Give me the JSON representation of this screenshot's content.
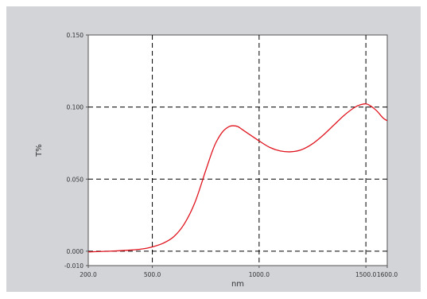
{
  "chart_data": {
    "type": "line",
    "title": "",
    "xlabel": "nm",
    "ylabel": "T%",
    "xlim": [
      200.0,
      1600.0
    ],
    "ylim": [
      -0.01,
      0.15
    ],
    "x_ticks": [
      {
        "value": 200.0,
        "label": "200.0"
      },
      {
        "value": 500.0,
        "label": "500.0"
      },
      {
        "value": 1000.0,
        "label": "1000.0"
      },
      {
        "value": 1500.0,
        "label": "1500.0"
      },
      {
        "value": 1600.0,
        "label": "1600.0"
      }
    ],
    "y_ticks": [
      {
        "value": -0.01,
        "label": "-0.010"
      },
      {
        "value": 0.0,
        "label": "0.000"
      },
      {
        "value": 0.05,
        "label": "0.050"
      },
      {
        "value": 0.1,
        "label": "0.100"
      },
      {
        "value": 0.15,
        "label": "0.150"
      }
    ],
    "x_gridlines": [
      500.0,
      1000.0,
      1500.0
    ],
    "y_gridlines": [
      0.0,
      0.05,
      0.1
    ],
    "grid": true,
    "grid_style": "dashed",
    "legend": "none",
    "series": [
      {
        "color": "#e0141e",
        "x": [
          200,
          300,
          400,
          450,
          500,
          550,
          600,
          650,
          700,
          750,
          780,
          800,
          830,
          860,
          880,
          900,
          920,
          950,
          1000,
          1050,
          1100,
          1150,
          1200,
          1250,
          1300,
          1350,
          1400,
          1450,
          1480,
          1500,
          1520,
          1550,
          1580,
          1600
        ],
        "y": [
          -0.0005,
          0.0,
          0.0008,
          0.0015,
          0.003,
          0.0055,
          0.01,
          0.019,
          0.034,
          0.056,
          0.069,
          0.076,
          0.083,
          0.0865,
          0.087,
          0.0865,
          0.0845,
          0.0815,
          0.0765,
          0.072,
          0.0695,
          0.069,
          0.0705,
          0.0745,
          0.0805,
          0.0875,
          0.0945,
          0.1,
          0.1018,
          0.1022,
          0.101,
          0.0975,
          0.0925,
          0.0905
        ]
      }
    ]
  },
  "colors": {
    "frame_background": "#d2d4d8",
    "plot_background": "#ffffff",
    "grid_color": "#000000",
    "line_color": "#e0141e"
  }
}
